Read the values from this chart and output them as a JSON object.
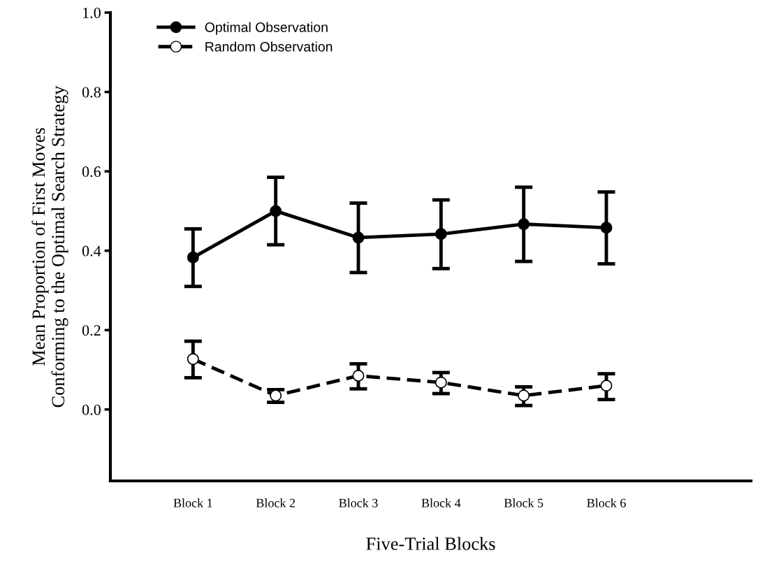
{
  "chart_data": {
    "type": "line",
    "xlabel": "Five-Trial Blocks",
    "ylabel": "Mean Proportion of First Moves\nConforming to the Optimal Search Strategy",
    "categories": [
      "Block 1",
      "Block 2",
      "Block 3",
      "Block 4",
      "Block 5",
      "Block 6"
    ],
    "series": [
      {
        "name": "Optimal Observation",
        "color": "#000000",
        "marker": "circle",
        "line_style": "solid",
        "values": [
          0.383,
          0.5,
          0.433,
          0.442,
          0.467,
          0.458
        ],
        "errors": [
          [
            0.31,
            0.455
          ],
          [
            0.415,
            0.585
          ],
          [
            0.345,
            0.52
          ],
          [
            0.355,
            0.528
          ],
          [
            0.373,
            0.56
          ],
          [
            0.367,
            0.548
          ]
        ]
      },
      {
        "name": "Random Observation",
        "color": "#000000",
        "marker": "circle",
        "line_style": "dashed",
        "values": [
          0.127,
          0.035,
          0.085,
          0.068,
          0.035,
          0.06
        ],
        "errors": [
          [
            0.08,
            0.172
          ],
          [
            0.018,
            0.05
          ],
          [
            0.052,
            0.115
          ],
          [
            0.04,
            0.093
          ],
          [
            0.01,
            0.057
          ],
          [
            0.025,
            0.09
          ]
        ]
      }
    ],
    "ylim": [
      -0.18,
      1.0
    ],
    "yticks": [
      {
        "value": 0,
        "label": "0.0"
      },
      0.2,
      0.4,
      0.6,
      0.8,
      {
        "value": 1,
        "label": "1.0"
      }
    ],
    "grid": false,
    "legend": "top left"
  }
}
